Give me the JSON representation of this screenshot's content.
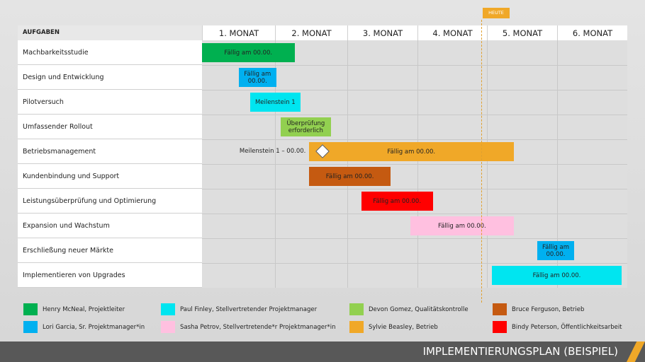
{
  "today": {
    "label": "HEUTE",
    "month_position": 4.93
  },
  "chart_data": {
    "type": "gantt",
    "header_task": "AUFGABEN",
    "months": [
      "1. MONAT",
      "2. MONAT",
      "3. MONAT",
      "4. MONAT",
      "5. MONAT",
      "6. MONAT"
    ],
    "tasks": [
      {
        "name": "Machbarkeitsstudie",
        "start": 0.0,
        "end": 1.27,
        "label": "Fällig am 00.00.",
        "color": "#00b050"
      },
      {
        "name": "Design und Entwicklung",
        "start": 0.5,
        "end": 1.02,
        "label": "Fällig am 00.00.",
        "color": "#00b0f0"
      },
      {
        "name": "Pilotversuch",
        "start": 0.66,
        "end": 1.35,
        "label": "Meilenstein 1",
        "color": "#00e5f0"
      },
      {
        "name": "Umfassender Rollout",
        "start": 1.08,
        "end": 1.77,
        "label": "Überprüfung erforderlich",
        "color": "#92d050"
      },
      {
        "name": "Betriebsmanagement",
        "start": 1.47,
        "end": 4.38,
        "label": "Fällig am 00.00.",
        "color": "#f0a828",
        "milestone": {
          "at": 1.67,
          "label": "Meilenstein 1 – 00.00."
        }
      },
      {
        "name": "Kundenbindung und Support",
        "start": 1.47,
        "end": 2.62,
        "label": "Fällig am 00.00.",
        "color": "#c55a11"
      },
      {
        "name": "Leistungsüberprüfung und Optimierung",
        "start": 2.2,
        "end": 3.22,
        "label": "Fällig am 00.00.",
        "color": "#ff0000"
      },
      {
        "name": "Expansion und Wachstum",
        "start": 2.9,
        "end": 4.38,
        "label": "Fällig am 00.00.",
        "color": "#ffc0e0"
      },
      {
        "name": "Erschließung neuer Märkte",
        "start": 4.72,
        "end": 5.24,
        "label": "Fällig am 00.00.",
        "color": "#00b0f0"
      },
      {
        "name": "Implementieren von Upgrades",
        "start": 4.07,
        "end": 5.92,
        "label": "Fällig am 00.00.",
        "color": "#00e5f0"
      }
    ]
  },
  "legend": [
    {
      "label": "Henry McNeal, Projektleiter",
      "color": "#00b050"
    },
    {
      "label": "Lori Garcia, Sr. Projektmanager*in",
      "color": "#00b0f0"
    },
    {
      "label": "Paul Finley, Stellvertretender Projektmanager",
      "color": "#00e5f0"
    },
    {
      "label": "Sasha Petrov, Stellvertretende*r Projektmanager*in",
      "color": "#ffc0e0"
    },
    {
      "label": "Devon Gomez, Qualitätskontrolle",
      "color": "#92d050"
    },
    {
      "label": "Sylvie Beasley, Betrieb",
      "color": "#f0a828"
    },
    {
      "label": "Bruce Ferguson, Betrieb",
      "color": "#c55a11"
    },
    {
      "label": "Bindy Peterson, Öffentlichkeitsarbeit",
      "color": "#ff0000"
    }
  ],
  "footer": {
    "title": "IMPLEMENTIERUNGSPLAN (BEISPIEL)"
  }
}
